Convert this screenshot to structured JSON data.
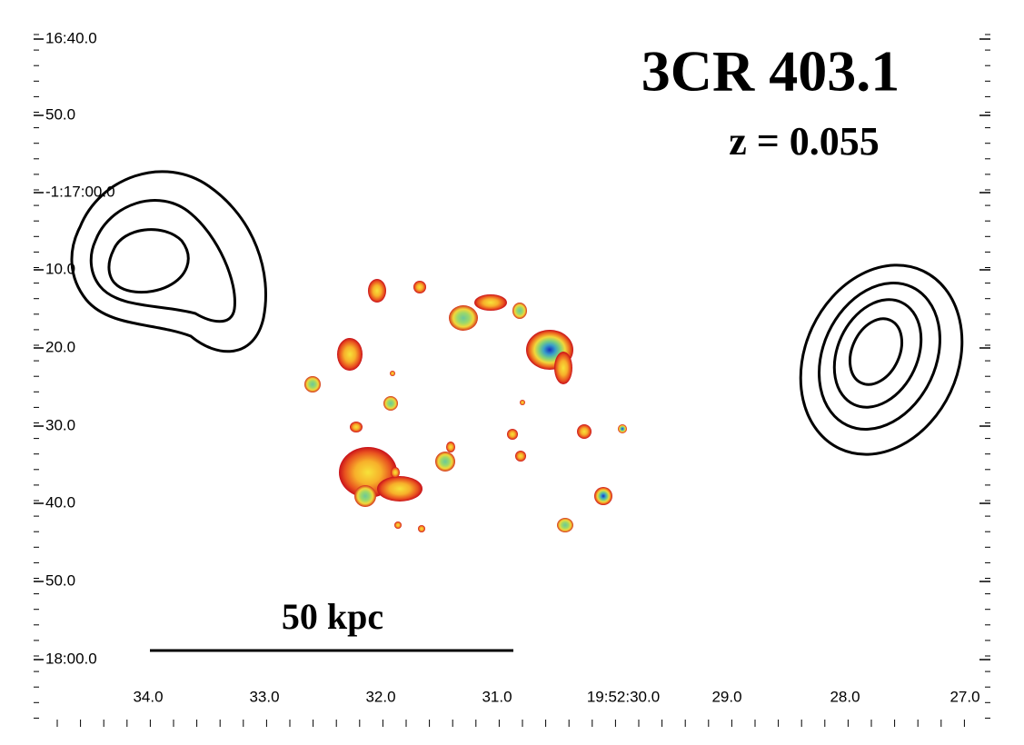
{
  "header": {
    "title": "3CR 403.1",
    "redshift": "z = 0.055"
  },
  "scale_bar": {
    "label": "50 kpc"
  },
  "axes": {
    "y_labels": [
      "16:40.0",
      "50.0",
      "-1:17:00.0",
      "10.0",
      "20.0",
      "30.0",
      "40.0",
      "50.0",
      "18:00.0"
    ],
    "x_labels": [
      "34.0",
      "33.0",
      "32.0",
      "31.0",
      "19:52:30.0",
      "29.0",
      "28.0",
      "27.0"
    ]
  }
}
